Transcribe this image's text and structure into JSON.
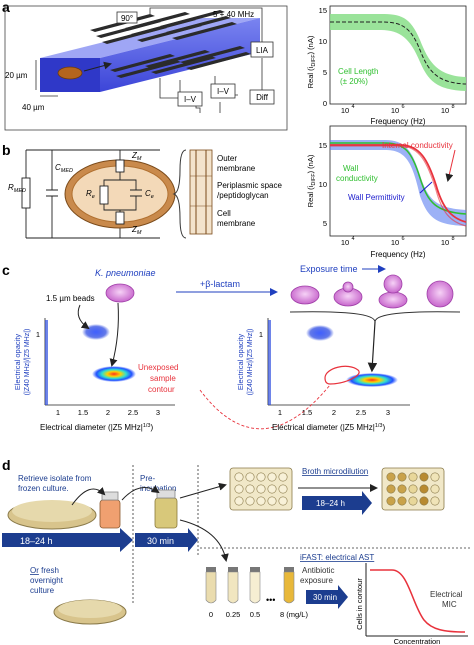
{
  "panel_a": {
    "label": "a",
    "angle": "90°",
    "freq_label": "5 + 40 MHz",
    "dim_height": "20 µm",
    "dim_width": "40 µm",
    "lia": "LIA",
    "iv1": "I–V",
    "iv2": "I–V",
    "diff": "Diff",
    "colors": {
      "channel": "#3c45d8",
      "cell": "#b5651d",
      "electrode": "#2b2b2b"
    }
  },
  "chart_a": {
    "ylabel": "Real (i",
    "ylabel_sub": "DIFF",
    "ylabel_unit": ") (nA)",
    "xlabel": "Frequency (Hz)",
    "yticks": [
      "0",
      "5",
      "10",
      "15"
    ],
    "xticks": [
      "10",
      "10",
      "10"
    ],
    "xtick_exp": [
      "4",
      "6",
      "8"
    ],
    "annotation_line1": "Cell Length",
    "annotation_line2": "(± 20%)",
    "colors": {
      "band": "#8fe08f",
      "annot": "#2fbf2f"
    }
  },
  "panel_b": {
    "label": "b",
    "r_med": "R",
    "r_med_sub": "MED",
    "c_med": "C",
    "c_med_sub": "MED",
    "zm_top": "Z",
    "zm_top_sub": "M",
    "zm_bot": "Z",
    "zm_bot_sub": "M",
    "re": "R",
    "re_sub": "e",
    "ce": "C",
    "ce_sub": "e",
    "outer_membrane_1": "Outer",
    "outer_membrane_2": "membrane",
    "periplasmic_1": "Periplasmic space",
    "periplasmic_2": "/peptidoglycan",
    "cell_membrane_1": "Cell",
    "cell_membrane_2": "membrane",
    "colors": {
      "cell_outer": "#c98a4c",
      "cell_inner": "#f3d9b8"
    }
  },
  "chart_b": {
    "ylabel": "Real (i",
    "ylabel_sub": "DIFF",
    "ylabel_unit": ") (nA)",
    "xlabel": "Frequency (Hz)",
    "yticks": [
      "5",
      "10",
      "15"
    ],
    "xticks": [
      "10",
      "10",
      "10"
    ],
    "xtick_exp": [
      "4",
      "6",
      "8"
    ],
    "internal": "Internal conductivity",
    "wall_cond_1": "Wall",
    "wall_cond_2": "conductivity",
    "wall_perm": "Wall Permittivity",
    "colors": {
      "internal": "#e8323c",
      "wall_cond": "#2fbf2f",
      "wall_perm": "#1a1acc"
    }
  },
  "panel_c": {
    "label": "c",
    "species": "K. pneumoniae",
    "beta_lactam": "+β-lactam",
    "exposure_time": "Exposure time",
    "beads": "1.5 µm beads",
    "unexposed_1": "Unexposed",
    "unexposed_2": "sample",
    "unexposed_3": "contour",
    "ylabel_line1": "Electrical opacity",
    "ylabel_line2": "(|Z40 MHz|/|Z5 MHz|)",
    "xlabel_left": "Electrical diameter (|Z5 MHz|",
    "xlabel_right": "Electrical diameter (|Z5 MHz|",
    "xlabel_exp": "1/3",
    "xticks": [
      "1",
      "1.5",
      "2",
      "2.5",
      "3"
    ],
    "ytick": "1",
    "colors": {
      "accent": "#1f3fbf",
      "cell": "#d27ad8",
      "contour": "#e8323c"
    }
  },
  "panel_d": {
    "label": "d",
    "retrieve_1": "Retrieve isolate from",
    "retrieve_2": "frozen culture.",
    "pre_1": "Pre-",
    "pre_2": "incubation",
    "time_1": "18–24 h",
    "time_2": "30 min",
    "time_3": "30 min",
    "broth": "Broth microdilution",
    "broth_time": "18–24 h",
    "ifast": "iFAST: electrical AST",
    "antibiotic_1": "Antibiotic",
    "antibiotic_2": "exposure",
    "or_fresh_1": "Or",
    "or_fresh_2": " fresh",
    "or_fresh_3": "overnight",
    "or_fresh_4": "culture",
    "concs": [
      "0",
      "0.25",
      "0.5",
      "8 (mg/L)"
    ],
    "dots": "•••",
    "cells_in_contour": "Cells in contour",
    "electrical_mic_1": "Electrical",
    "electrical_mic_2": "MIC",
    "concentration": "Concentration",
    "colors": {
      "arrow": "#1c3d8f",
      "curve": "#e8323c",
      "plate": "#c9b06a"
    }
  }
}
